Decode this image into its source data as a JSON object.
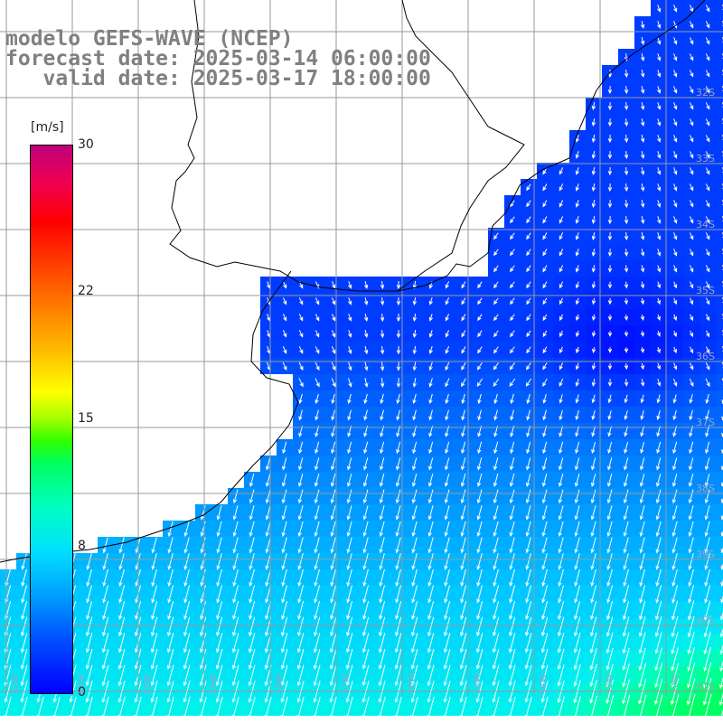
{
  "title": {
    "line1": "modelo GEFS-WAVE (NCEP)",
    "line2": "forecast date: 2025-03-14 06:00:00",
    "line3": "   valid date: 2025-03-17 18:00:00"
  },
  "colorbar": {
    "unit": "[m/s]",
    "ticks": [
      {
        "label": "30",
        "value": 30
      },
      {
        "label": "22",
        "value": 22
      },
      {
        "label": "15",
        "value": 15
      },
      {
        "label": "8",
        "value": 8
      },
      {
        "label": "0",
        "value": 0
      }
    ],
    "min": 0,
    "max": 30
  },
  "latitude_labels": [
    "32S",
    "33S",
    "34S",
    "35S",
    "36S",
    "37S",
    "38S",
    "39S",
    "40S",
    "41S"
  ],
  "longitude_labels": [
    "62W",
    "61W",
    "60W",
    "59W",
    "58W",
    "57W",
    "56W",
    "55W",
    "54W",
    "53W",
    "52W",
    "51W"
  ],
  "field": {
    "variable": "wind speed",
    "units": "m/s",
    "range_shown": [
      0,
      10
    ],
    "dominant_direction": "southward (arrows pointing S/SW)"
  },
  "colors": {
    "land": "#ffffff",
    "grid": "#9a9a9a",
    "coast": "#000000",
    "title": "#808080"
  }
}
